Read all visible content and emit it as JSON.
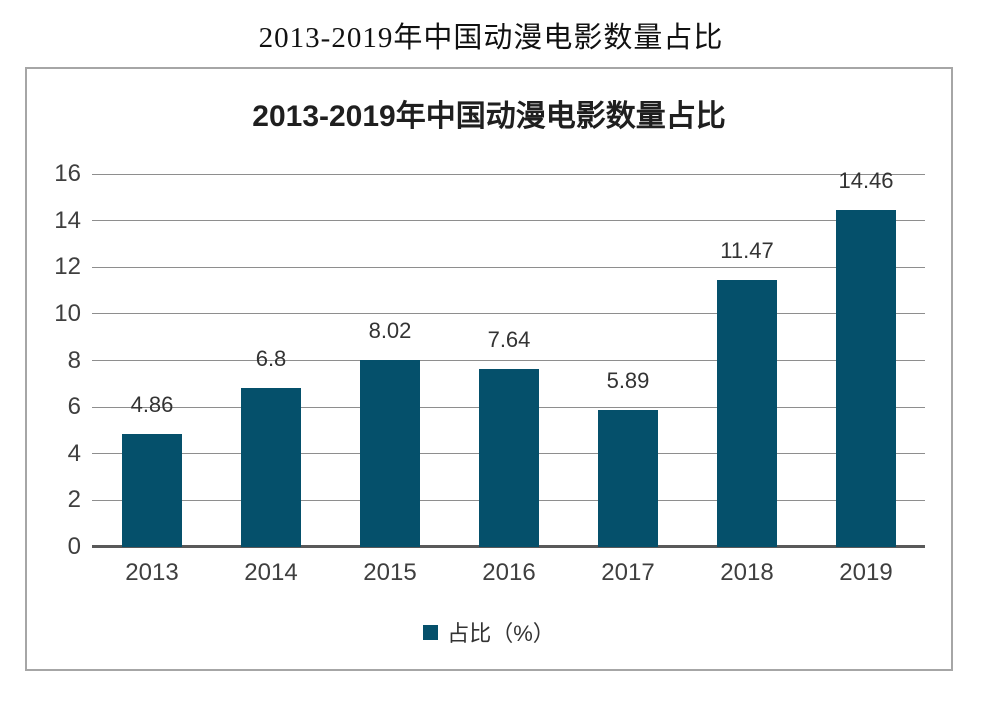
{
  "page_title": "2013-2019年中国动漫电影数量占比",
  "chart_data": {
    "type": "bar",
    "title": "2013-2019年中国动漫电影数量占比",
    "series_name": "占比（%）",
    "categories": [
      "2013",
      "2014",
      "2015",
      "2016",
      "2017",
      "2018",
      "2019"
    ],
    "values": [
      4.86,
      6.8,
      8.02,
      7.64,
      5.89,
      11.47,
      14.46
    ],
    "value_labels": [
      "4.86",
      "6.8",
      "8.02",
      "7.64",
      "5.89",
      "11.47",
      "14.46"
    ],
    "xlabel": "",
    "ylabel": "",
    "ylim": [
      0,
      16
    ],
    "ytick_step": 2,
    "ytick_labels": [
      "0",
      "2",
      "4",
      "6",
      "8",
      "10",
      "12",
      "14",
      "16"
    ],
    "grid": "horizontal",
    "legend_position": "bottom"
  },
  "colors": {
    "bar": "#05506b",
    "gridline": "#8e8e8e",
    "axis_line": "#595959",
    "panel_border": "#a6a6a6",
    "title_text": "#1f1f1f",
    "label_text": "#3f3f3f",
    "value_text": "#333333"
  }
}
